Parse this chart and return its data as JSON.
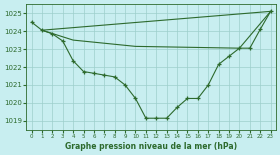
{
  "line1_x": [
    0,
    1,
    2,
    3,
    4,
    5,
    6,
    7,
    8,
    9,
    10,
    11,
    12,
    13,
    14,
    15,
    16,
    17,
    18,
    19,
    20,
    21,
    22,
    23
  ],
  "line1_y": [
    1024.5,
    1024.05,
    1023.85,
    1023.45,
    1022.35,
    1021.75,
    1021.65,
    1021.55,
    1021.45,
    1021.0,
    1020.25,
    1019.15,
    1019.15,
    1019.15,
    1019.75,
    1020.25,
    1020.25,
    1021.0,
    1022.15,
    1022.6,
    1023.05,
    1023.05,
    1024.1,
    1025.1
  ],
  "line2_x": [
    1,
    23
  ],
  "line2_y": [
    1024.05,
    1025.1
  ],
  "line3_x": [
    1,
    4,
    10,
    20,
    23
  ],
  "line3_y": [
    1024.05,
    1023.5,
    1023.15,
    1023.05,
    1025.1
  ],
  "line_color": "#2d6a2d",
  "bg_color": "#c8eef0",
  "grid_color": "#9dcfcc",
  "xlabel": "Graphe pression niveau de la mer (hPa)",
  "ylim": [
    1018.5,
    1025.5
  ],
  "xlim": [
    -0.5,
    23.5
  ],
  "yticks": [
    1019,
    1020,
    1021,
    1022,
    1023,
    1024,
    1025
  ],
  "xticks": [
    0,
    1,
    2,
    3,
    4,
    5,
    6,
    7,
    8,
    9,
    10,
    11,
    12,
    13,
    14,
    15,
    16,
    17,
    18,
    19,
    20,
    21,
    22,
    23
  ],
  "xtick_labels": [
    "0",
    "1",
    "2",
    "3",
    "4",
    "5",
    "6",
    "7",
    "8",
    "9",
    "10",
    "11",
    "12",
    "13",
    "14",
    "15",
    "16",
    "17",
    "18",
    "19",
    "20",
    "21",
    "22",
    "23"
  ],
  "marker": "+",
  "linewidth": 0.8,
  "markersize": 3.5
}
